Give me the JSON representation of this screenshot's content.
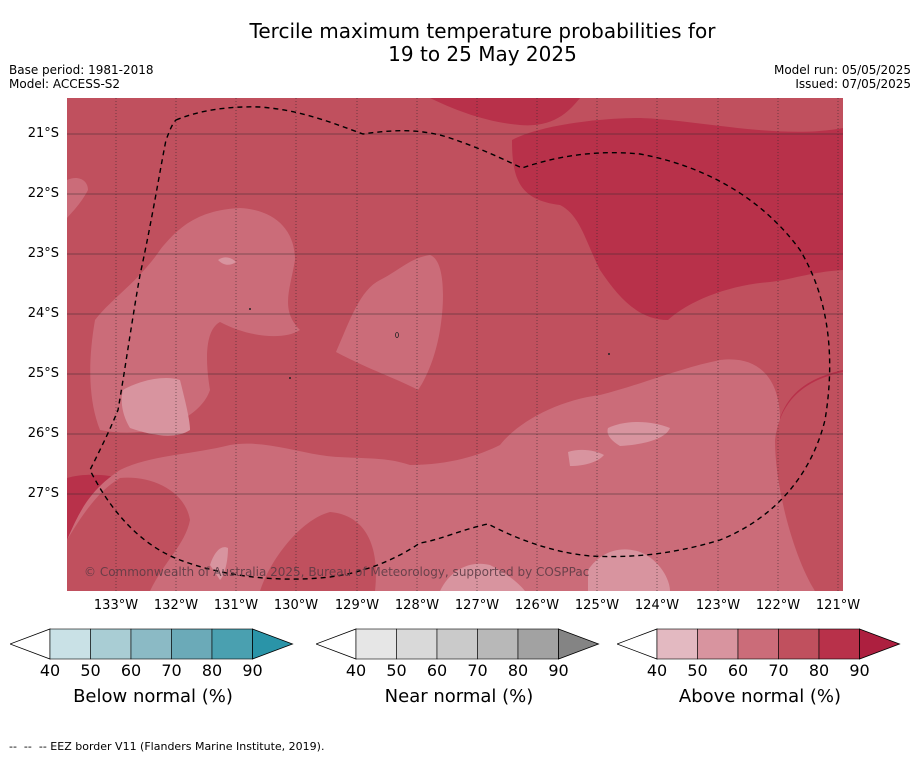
{
  "title_line1": "Tercile maximum temperature probabilities for",
  "title_line2": "19 to 25 May 2025",
  "base_period": "Base period: 1981-2018",
  "model": "Model: ACCESS-S2",
  "model_run": "Model run: 05/05/2025",
  "issued": "Issued: 07/05/2025",
  "copyright": "© Commonwealth of Australia 2025, Bureau of Meteorology, supported by COSPPac",
  "lat_labels": [
    "21°S",
    "22°S",
    "23°S",
    "24°S",
    "25°S",
    "26°S",
    "27°S"
  ],
  "lon_labels": [
    "133°W",
    "132°W",
    "131°W",
    "130°W",
    "129°W",
    "128°W",
    "127°W",
    "126°W",
    "125°W",
    "124°W",
    "123°W",
    "122°W",
    "121°W"
  ],
  "colorbars": [
    {
      "label": "Below normal (%)",
      "ticks": [
        "40",
        "50",
        "60",
        "70",
        "80",
        "90"
      ],
      "colors": [
        "#ffffff",
        "#c9e1e6",
        "#a9cdd4",
        "#8bbac5",
        "#6baab8",
        "#4aa0b0",
        "#2a94a8"
      ]
    },
    {
      "label": "Near normal (%)",
      "ticks": [
        "40",
        "50",
        "60",
        "70",
        "80",
        "90"
      ],
      "colors": [
        "#ffffff",
        "#e6e6e6",
        "#d9d9d9",
        "#cacaca",
        "#b8b8b8",
        "#a2a2a2",
        "#848484"
      ]
    },
    {
      "label": "Above normal (%)",
      "ticks": [
        "40",
        "50",
        "60",
        "70",
        "80",
        "90"
      ],
      "colors": [
        "#ffffff",
        "#e3b9c1",
        "#d8949f",
        "#cb6c79",
        "#c0505e",
        "#b8314a",
        "#ad1f3f"
      ]
    }
  ],
  "map_colors": {
    "above_60_70": "#cb6c79",
    "above_70_80": "#c0505e",
    "above_80_90": "#b8314a",
    "above_50_60": "#d8949f"
  },
  "footnote": "--  --  -- EEZ border V11 (Flanders Marine Institute, 2019)."
}
